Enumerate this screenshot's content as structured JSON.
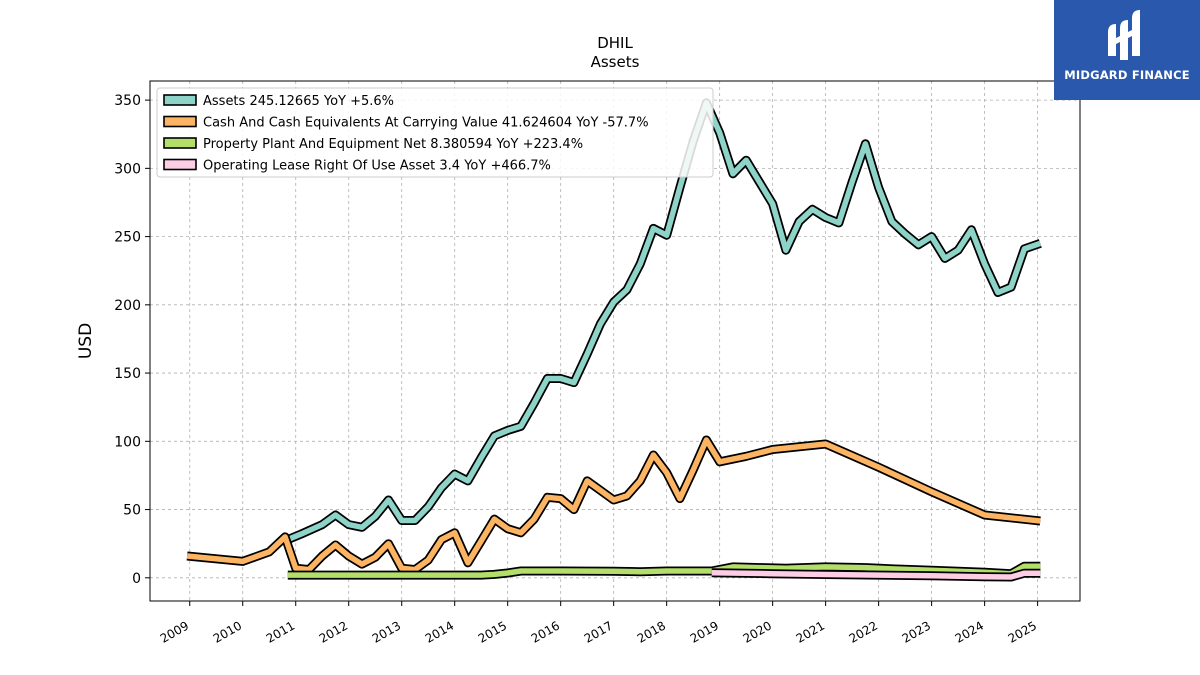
{
  "brand": {
    "name": "MIDGARD FINANCE",
    "bg_color": "#2a58ad"
  },
  "chart_data": {
    "type": "line",
    "title": "DHIL",
    "subtitle": "Assets",
    "ylabel": "USD",
    "xlabel": "",
    "ylim": [
      -17,
      364
    ],
    "xlim": [
      2008.25,
      2025.8
    ],
    "yticks": [
      0,
      50,
      100,
      150,
      200,
      250,
      300,
      350
    ],
    "xticks": [
      "2009",
      "2010",
      "2011",
      "2012",
      "2013",
      "2014",
      "2015",
      "2016",
      "2017",
      "2018",
      "2019",
      "2020",
      "2021",
      "2022",
      "2023",
      "2024",
      "2025"
    ],
    "grid": true,
    "legend_position": "top-left",
    "series": [
      {
        "name": "Assets  245.12665 YoY +5.6%",
        "color": "#8dd3c7",
        "points": [
          [
            2010.85,
            28
          ],
          [
            2011.1,
            32
          ],
          [
            2011.5,
            39
          ],
          [
            2011.75,
            46
          ],
          [
            2012.0,
            39
          ],
          [
            2012.25,
            37
          ],
          [
            2012.5,
            45
          ],
          [
            2012.75,
            57
          ],
          [
            2013.0,
            42
          ],
          [
            2013.25,
            42
          ],
          [
            2013.5,
            52
          ],
          [
            2013.75,
            66
          ],
          [
            2014.0,
            76
          ],
          [
            2014.25,
            71
          ],
          [
            2014.5,
            88
          ],
          [
            2014.75,
            104
          ],
          [
            2015.0,
            108
          ],
          [
            2015.25,
            111
          ],
          [
            2015.5,
            128
          ],
          [
            2015.75,
            146
          ],
          [
            2016.0,
            146
          ],
          [
            2016.25,
            143
          ],
          [
            2016.5,
            164
          ],
          [
            2016.75,
            186
          ],
          [
            2017.0,
            202
          ],
          [
            2017.25,
            211
          ],
          [
            2017.5,
            230
          ],
          [
            2017.75,
            256
          ],
          [
            2018.0,
            251
          ],
          [
            2018.25,
            286
          ],
          [
            2018.5,
            320
          ],
          [
            2018.75,
            348
          ],
          [
            2019.0,
            326
          ],
          [
            2019.25,
            296
          ],
          [
            2019.5,
            306
          ],
          [
            2019.75,
            290
          ],
          [
            2020.0,
            274
          ],
          [
            2020.25,
            240
          ],
          [
            2020.5,
            261
          ],
          [
            2020.75,
            270
          ],
          [
            2021.0,
            264
          ],
          [
            2021.25,
            260
          ],
          [
            2021.5,
            290
          ],
          [
            2021.75,
            318
          ],
          [
            2022.0,
            286
          ],
          [
            2022.25,
            261
          ],
          [
            2022.5,
            252
          ],
          [
            2022.75,
            244
          ],
          [
            2023.0,
            250
          ],
          [
            2023.25,
            234
          ],
          [
            2023.5,
            240
          ],
          [
            2023.75,
            255
          ],
          [
            2024.0,
            230
          ],
          [
            2024.25,
            209
          ],
          [
            2024.5,
            213
          ],
          [
            2024.75,
            241
          ],
          [
            2025.05,
            245
          ]
        ]
      },
      {
        "name": "Cash And Cash Equivalents At Carrying Value  41.624604 YoY -57.7%",
        "color": "#fdb462",
        "points": [
          [
            2008.95,
            16
          ],
          [
            2010.0,
            12
          ],
          [
            2010.5,
            19
          ],
          [
            2010.8,
            30
          ],
          [
            2011.0,
            7
          ],
          [
            2011.25,
            6
          ],
          [
            2011.5,
            16
          ],
          [
            2011.75,
            24
          ],
          [
            2012.0,
            16
          ],
          [
            2012.25,
            10
          ],
          [
            2012.5,
            15
          ],
          [
            2012.75,
            25
          ],
          [
            2013.0,
            7
          ],
          [
            2013.25,
            6
          ],
          [
            2013.5,
            13
          ],
          [
            2013.75,
            28
          ],
          [
            2014.0,
            33
          ],
          [
            2014.25,
            11
          ],
          [
            2014.5,
            27
          ],
          [
            2014.75,
            43
          ],
          [
            2015.0,
            36
          ],
          [
            2015.25,
            33
          ],
          [
            2015.5,
            43
          ],
          [
            2015.75,
            59
          ],
          [
            2016.0,
            58
          ],
          [
            2016.25,
            50
          ],
          [
            2016.5,
            71
          ],
          [
            2016.75,
            64
          ],
          [
            2017.0,
            57
          ],
          [
            2017.25,
            60
          ],
          [
            2017.5,
            71
          ],
          [
            2017.75,
            90
          ],
          [
            2018.0,
            77
          ],
          [
            2018.25,
            58
          ],
          [
            2018.5,
            79
          ],
          [
            2018.75,
            101
          ],
          [
            2019.0,
            85
          ],
          [
            2019.5,
            89
          ],
          [
            2020.0,
            94
          ],
          [
            2021.0,
            98
          ],
          [
            2022.0,
            81
          ],
          [
            2023.0,
            63
          ],
          [
            2024.0,
            46
          ],
          [
            2025.05,
            41.6
          ]
        ]
      },
      {
        "name": "Property Plant And Equipment Net  8.380594 YoY +223.4%",
        "color": "#b3de69",
        "points": [
          [
            2010.85,
            2
          ],
          [
            2013.0,
            2
          ],
          [
            2014.0,
            2
          ],
          [
            2014.5,
            2
          ],
          [
            2014.75,
            2.5
          ],
          [
            2015.0,
            3.5
          ],
          [
            2015.25,
            5
          ],
          [
            2016.0,
            5
          ],
          [
            2017.0,
            4.8
          ],
          [
            2017.5,
            4.5
          ],
          [
            2018.0,
            5
          ],
          [
            2018.5,
            5
          ],
          [
            2018.85,
            5
          ],
          [
            2019.25,
            8
          ],
          [
            2019.75,
            7.5
          ],
          [
            2020.25,
            7
          ],
          [
            2021.0,
            8
          ],
          [
            2021.75,
            7.5
          ],
          [
            2022.25,
            6.5
          ],
          [
            2023.0,
            5.5
          ],
          [
            2024.0,
            4
          ],
          [
            2024.5,
            3
          ],
          [
            2024.75,
            8.5
          ],
          [
            2025.05,
            8.4
          ]
        ]
      },
      {
        "name": "Operating Lease Right Of Use Asset  3.4 YoY +466.7%",
        "color": "#fccde5",
        "points": [
          [
            2018.85,
            3.7
          ],
          [
            2020.0,
            3
          ],
          [
            2021.0,
            2.4
          ],
          [
            2022.0,
            2
          ],
          [
            2023.0,
            1.5
          ],
          [
            2024.0,
            0.8
          ],
          [
            2024.5,
            0.6
          ],
          [
            2024.75,
            3.4
          ],
          [
            2025.05,
            3.4
          ]
        ]
      }
    ]
  }
}
